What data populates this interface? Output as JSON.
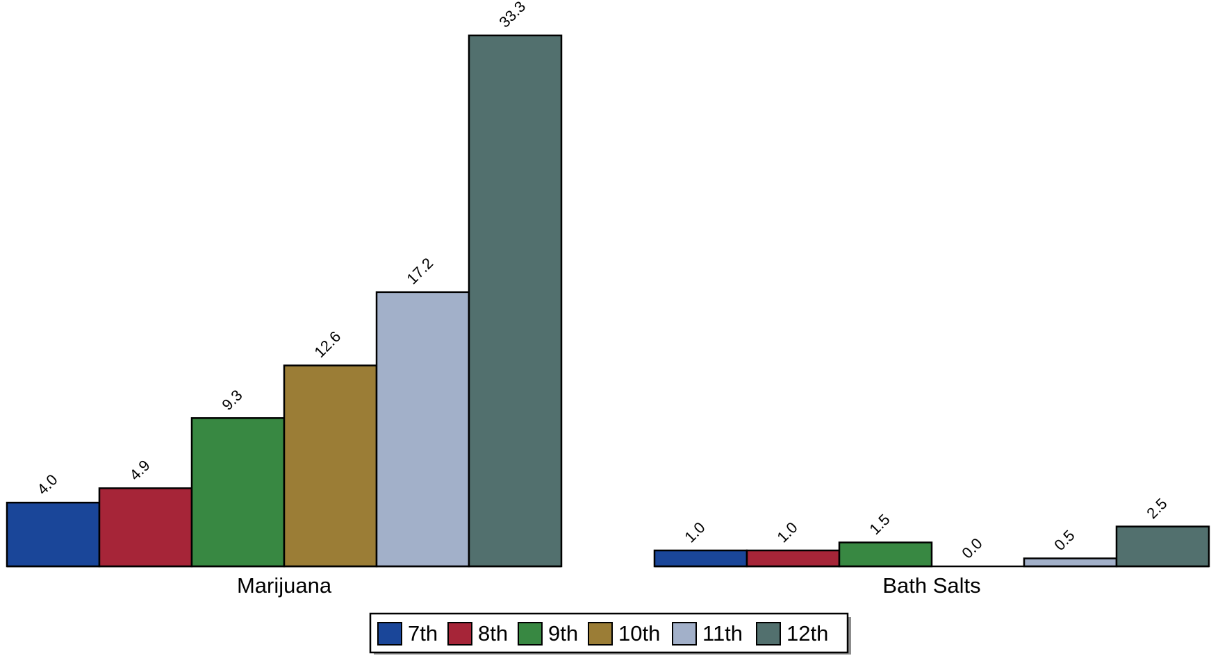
{
  "chart_data": {
    "type": "bar",
    "categories": [
      "Marijuana",
      "Bath Salts"
    ],
    "series": [
      {
        "name": "7th",
        "color": "#1a4699",
        "values": [
          4.0,
          1.0
        ]
      },
      {
        "name": "8th",
        "color": "#a62538",
        "values": [
          4.9,
          1.0
        ]
      },
      {
        "name": "9th",
        "color": "#388842",
        "values": [
          9.3,
          1.5
        ]
      },
      {
        "name": "10th",
        "color": "#9b7d36",
        "values": [
          12.6,
          0.0
        ]
      },
      {
        "name": "11th",
        "color": "#a2b0c9",
        "values": [
          17.2,
          0.5
        ]
      },
      {
        "name": "12th",
        "color": "#52706e",
        "values": [
          33.3,
          2.5
        ]
      }
    ],
    "value_labels": [
      [
        "4.0",
        "1.0"
      ],
      [
        "4.9",
        "1.0"
      ],
      [
        "9.3",
        "1.5"
      ],
      [
        "12.6",
        "0.0"
      ],
      [
        "17.2",
        "0.5"
      ],
      [
        "33.3",
        "2.5"
      ]
    ],
    "ylim": [
      0,
      33.3
    ],
    "grid": false,
    "legend_position": "bottom-center",
    "title": "",
    "xlabel": "",
    "ylabel": ""
  }
}
